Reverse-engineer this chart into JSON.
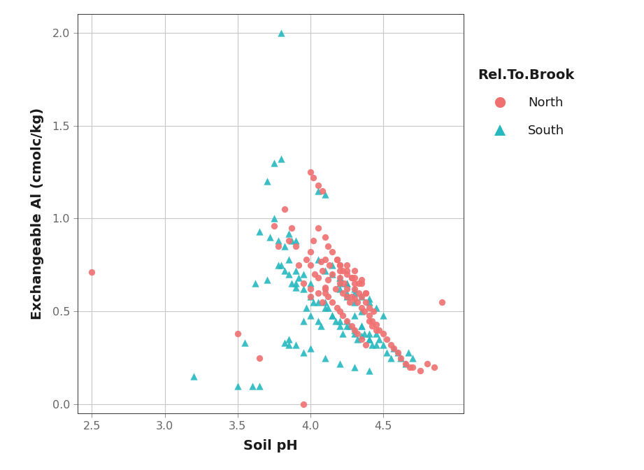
{
  "title": "",
  "xlabel": "Soil pH",
  "ylabel": "Exchangeable Al (cmolc/kg)",
  "legend_title": "Rel.To.Brook",
  "xlim": [
    2.4,
    5.05
  ],
  "ylim": [
    -0.05,
    2.1
  ],
  "xticks": [
    2.5,
    3.0,
    3.5,
    4.0,
    4.5
  ],
  "yticks": [
    0.0,
    0.5,
    1.0,
    1.5,
    2.0
  ],
  "north_color": "#F07070",
  "south_color": "#26B8C0",
  "bg_color": "#FFFFFF",
  "panel_bg": "#FFFFFF",
  "grid_color": "#C8C8C8",
  "tick_label_color": "#666666",
  "axis_label_color": "#1A1A1A",
  "north_x": [
    2.5,
    3.5,
    3.65,
    3.75,
    3.78,
    3.82,
    3.85,
    3.87,
    3.9,
    3.92,
    3.95,
    3.97,
    4.0,
    4.0,
    4.02,
    4.03,
    4.05,
    4.05,
    4.07,
    4.08,
    4.1,
    4.1,
    4.12,
    4.13,
    4.15,
    4.17,
    4.18,
    4.2,
    4.2,
    4.2,
    4.22,
    4.23,
    4.25,
    4.25,
    4.25,
    4.27,
    4.28,
    4.28,
    4.3,
    4.3,
    4.3,
    4.32,
    4.33,
    4.33,
    4.35,
    4.35,
    4.35,
    4.37,
    4.38,
    4.38,
    4.4,
    4.4,
    4.42,
    4.43,
    4.45,
    4.47,
    4.5,
    4.52,
    4.55,
    4.57,
    4.6,
    4.62,
    4.65,
    4.68,
    4.7,
    4.75,
    4.8,
    4.85,
    4.9,
    3.95,
    4.0,
    4.05,
    4.08,
    4.1,
    4.12,
    4.15,
    4.18,
    4.2,
    4.22,
    4.25,
    4.28,
    4.3,
    4.32,
    4.35,
    4.38,
    4.4,
    4.42,
    4.45,
    4.2,
    4.25,
    4.3,
    4.35,
    4.38,
    4.0,
    4.02,
    4.05,
    4.08,
    4.1,
    4.12,
    4.15,
    4.18,
    4.2,
    4.22,
    4.25,
    4.28,
    4.3,
    4.0,
    4.1
  ],
  "north_y": [
    0.71,
    0.38,
    0.25,
    0.96,
    0.85,
    1.05,
    0.88,
    0.95,
    0.85,
    0.75,
    0.65,
    0.78,
    0.82,
    0.75,
    0.88,
    0.7,
    0.68,
    0.95,
    0.77,
    0.72,
    0.63,
    0.78,
    0.67,
    0.75,
    0.7,
    0.62,
    0.78,
    0.68,
    0.72,
    0.65,
    0.6,
    0.65,
    0.58,
    0.62,
    0.75,
    0.55,
    0.68,
    0.58,
    0.57,
    0.62,
    0.72,
    0.55,
    0.6,
    0.65,
    0.52,
    0.58,
    0.67,
    0.5,
    0.55,
    0.6,
    0.48,
    0.52,
    0.45,
    0.5,
    0.43,
    0.4,
    0.38,
    0.35,
    0.32,
    0.3,
    0.28,
    0.25,
    0.22,
    0.2,
    0.2,
    0.18,
    0.22,
    0.2,
    0.55,
    0.0,
    0.58,
    0.6,
    0.55,
    0.62,
    0.58,
    0.55,
    0.52,
    0.5,
    0.48,
    0.45,
    0.42,
    0.4,
    0.38,
    0.35,
    0.32,
    0.45,
    0.42,
    0.4,
    0.75,
    0.72,
    0.68,
    0.65,
    0.6,
    1.25,
    1.22,
    1.18,
    1.15,
    0.9,
    0.85,
    0.82,
    0.78,
    0.75,
    0.72,
    0.7,
    0.68,
    0.65,
    0.62,
    0.6
  ],
  "south_x": [
    3.2,
    3.5,
    3.55,
    3.62,
    3.65,
    3.7,
    3.72,
    3.75,
    3.78,
    3.8,
    3.82,
    3.85,
    3.87,
    3.9,
    3.92,
    3.95,
    3.97,
    4.0,
    4.02,
    4.05,
    4.07,
    4.1,
    4.12,
    4.15,
    4.17,
    4.2,
    4.22,
    4.25,
    4.27,
    4.3,
    4.32,
    4.35,
    4.37,
    4.4,
    4.42,
    4.45,
    4.47,
    4.5,
    4.52,
    4.55,
    4.57,
    4.6,
    4.62,
    4.65,
    4.67,
    4.7,
    3.75,
    3.8,
    3.85,
    3.9,
    3.95,
    4.0,
    4.05,
    4.1,
    4.15,
    4.2,
    4.25,
    4.3,
    4.35,
    3.78,
    3.82,
    3.85,
    3.9,
    3.95,
    4.0,
    4.05,
    4.1,
    4.15,
    4.2,
    4.25,
    4.3,
    4.35,
    4.4,
    4.45,
    3.85,
    3.9,
    3.95,
    4.0,
    4.1,
    4.2,
    4.3,
    4.4,
    3.6,
    3.65,
    3.7,
    4.05,
    4.1,
    4.15,
    4.2,
    4.25,
    4.3,
    4.35,
    4.4,
    4.2,
    4.25,
    4.3,
    4.35,
    4.4,
    4.45,
    4.5
  ],
  "south_y": [
    0.15,
    0.1,
    0.33,
    0.65,
    0.93,
    0.67,
    0.9,
    1.0,
    0.88,
    0.75,
    0.85,
    0.78,
    0.88,
    0.72,
    0.68,
    0.45,
    0.52,
    0.48,
    0.55,
    0.45,
    0.42,
    0.55,
    0.52,
    0.48,
    0.45,
    0.42,
    0.38,
    0.45,
    0.42,
    0.38,
    0.35,
    0.42,
    0.38,
    0.35,
    0.32,
    0.38,
    0.35,
    0.32,
    0.28,
    0.25,
    0.3,
    0.28,
    0.25,
    0.22,
    0.28,
    0.25,
    1.3,
    1.32,
    0.92,
    0.88,
    0.7,
    0.65,
    0.78,
    0.72,
    0.7,
    0.65,
    0.6,
    0.55,
    0.5,
    0.75,
    0.72,
    0.7,
    0.65,
    0.62,
    0.58,
    0.55,
    0.52,
    0.48,
    0.45,
    0.42,
    0.4,
    0.37,
    0.35,
    0.32,
    0.35,
    0.32,
    0.28,
    0.3,
    0.25,
    0.22,
    0.2,
    0.18,
    0.1,
    0.1,
    1.2,
    1.15,
    1.13,
    0.75,
    0.62,
    0.58,
    0.48,
    0.42,
    0.38,
    0.68,
    0.65,
    0.62,
    0.58,
    0.55,
    0.52,
    0.48
  ],
  "south_x_extra": [
    3.8,
    3.82,
    3.85,
    3.87,
    3.9,
    4.2,
    4.25,
    4.3,
    4.4
  ],
  "south_y_extra": [
    2.0,
    0.33,
    0.32,
    0.65,
    0.63,
    0.68,
    0.65,
    0.6,
    0.57
  ]
}
